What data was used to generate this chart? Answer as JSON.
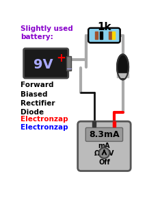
{
  "bg_color": "#ffffff",
  "text_slightly_used": "Slightly used\nbattery:",
  "text_slightly_used_color": "#8800cc",
  "text_fwdbias": "Forward\nBiased\nRectifier\nDiode",
  "text_fwdbias_color": "#000000",
  "text_electronzap1": "Electronzap",
  "text_electronzap1_color": "#ff0000",
  "text_electronzap2": "Electronzap",
  "text_electronzap2_color": "#0000ff",
  "text_1k": "1k",
  "text_8v3": "8.3mA",
  "text_mA": "mA",
  "text_omega": "Ω",
  "text_V": "V",
  "text_off": "Off",
  "wire_gray": "#aaaaaa",
  "battery_bg": "#1a1a1a",
  "battery_text_color": "#aaaaff",
  "battery_plus_color": "#ff0000",
  "battery_minus_color": "#aaaaff",
  "resistor_body_color": "#87ceeb",
  "resistor_outline": "#000000",
  "diode_body_color": "#111111",
  "diode_band_color": "#bbbbbb",
  "multimeter_bg": "#bbbbbb",
  "multimeter_display_bg": "#999999",
  "knob_color": "#888888",
  "red_wire_color": "#ff0000",
  "black_wire_color": "#111111",
  "stripe_colors": [
    "#a0522d",
    "#000000",
    "#87ceeb",
    "#a0522d",
    "#ffd700"
  ],
  "connector_color": "#777777"
}
